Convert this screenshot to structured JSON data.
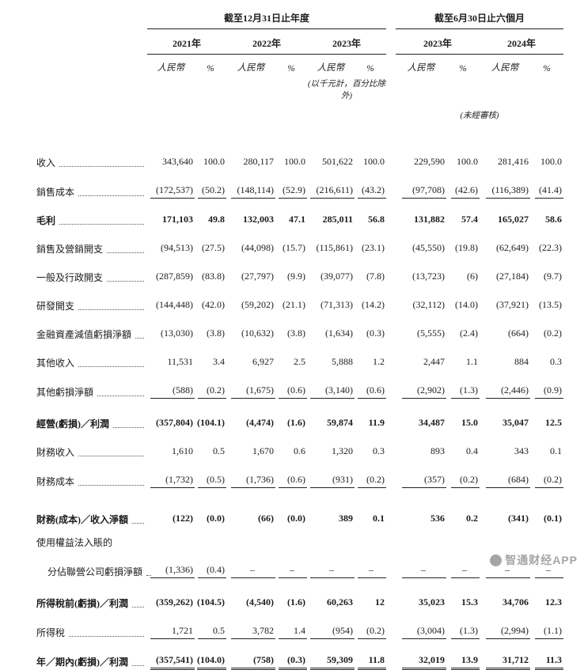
{
  "table": {
    "group1": "截至12月31日止年度",
    "group2": "截至6月30日止六個月",
    "years": [
      "2021年",
      "2022年",
      "2023年",
      "2023年",
      "2024年"
    ],
    "currency_label": "人民幣",
    "percent_label": "%",
    "note_units": "(以千元計，百分比除外)",
    "note_unaudited": "(未經審核)",
    "rows": [
      {
        "label": "收入",
        "values": [
          "343,640",
          "100.0",
          "280,117",
          "100.0",
          "501,622",
          "100.0",
          "229,590",
          "100.0",
          "281,416",
          "100.0"
        ]
      },
      {
        "label": "銷售成本",
        "underline": "single",
        "values": [
          "(172,537)",
          "(50.2)",
          "(148,114)",
          "(52.9)",
          "(216,611)",
          "(43.2)",
          "(97,708)",
          "(42.6)",
          "(116,389)",
          "(41.4)"
        ]
      },
      {
        "label": "毛利",
        "bold": true,
        "values": [
          "171,103",
          "49.8",
          "132,003",
          "47.1",
          "285,011",
          "56.8",
          "131,882",
          "57.4",
          "165,027",
          "58.6"
        ]
      },
      {
        "label": "銷售及營銷開支",
        "values": [
          "(94,513)",
          "(27.5)",
          "(44,098)",
          "(15.7)",
          "(115,861)",
          "(23.1)",
          "(45,550)",
          "(19.8)",
          "(62,649)",
          "(22.3)"
        ]
      },
      {
        "label": "一般及行政開支",
        "values": [
          "(287,859)",
          "(83.8)",
          "(27,797)",
          "(9.9)",
          "(39,077)",
          "(7.8)",
          "(13,723)",
          "(6)",
          "(27,184)",
          "(9.7)"
        ]
      },
      {
        "label": "研發開支",
        "values": [
          "(144,448)",
          "(42.0)",
          "(59,202)",
          "(21.1)",
          "(71,313)",
          "(14.2)",
          "(32,112)",
          "(14.0)",
          "(37,921)",
          "(13.5)"
        ]
      },
      {
        "label": "金融資產減值虧損淨額",
        "values": [
          "(13,030)",
          "(3.8)",
          "(10,632)",
          "(3.8)",
          "(1,634)",
          "(0.3)",
          "(5,555)",
          "(2.4)",
          "(664)",
          "(0.2)"
        ]
      },
      {
        "label": "其他收入",
        "values": [
          "11,531",
          "3.4",
          "6,927",
          "2.5",
          "5,888",
          "1.2",
          "2,447",
          "1.1",
          "884",
          "0.3"
        ]
      },
      {
        "label": "其他虧損淨額",
        "underline": "single",
        "values": [
          "(588)",
          "(0.2)",
          "(1,675)",
          "(0.6)",
          "(3,140)",
          "(0.6)",
          "(2,902)",
          "(1.3)",
          "(2,446)",
          "(0.9)"
        ]
      },
      {
        "label": "經營(虧損)／利潤",
        "bold": true,
        "gap": "gap",
        "values": [
          "(357,804)",
          "(104.1)",
          "(4,474)",
          "(1.6)",
          "59,874",
          "11.9",
          "34,487",
          "15.0",
          "35,047",
          "12.5"
        ]
      },
      {
        "label": "財務收入",
        "values": [
          "1,610",
          "0.5",
          "1,670",
          "0.6",
          "1,320",
          "0.3",
          "893",
          "0.4",
          "343",
          "0.1"
        ]
      },
      {
        "label": "財務成本",
        "underline": "single",
        "values": [
          "(1,732)",
          "(0.5)",
          "(1,736)",
          "(0.6)",
          "(931)",
          "(0.2)",
          "(357)",
          "(0.2)",
          "(684)",
          "(0.2)"
        ]
      },
      {
        "label": "財務(成本)／收入淨額",
        "bold": true,
        "gap": "gap-lg",
        "values": [
          "(122)",
          "(0.0)",
          "(66)",
          "(0.0)",
          "389",
          "0.1",
          "536",
          "0.2",
          "(341)",
          "(0.1)"
        ]
      },
      {
        "label": "使用權益法入賬的",
        "dots": false,
        "gap": "tight",
        "values": null
      },
      {
        "label": "分佔聯營公司虧損淨額",
        "indent": true,
        "underline": "single",
        "values": [
          "(1,336)",
          "(0.4)",
          "–",
          "–",
          "–",
          "–",
          "–",
          "–",
          "–",
          "–"
        ]
      },
      {
        "label": "所得稅前(虧損)／利潤",
        "bold": true,
        "gap": "gap",
        "values": [
          "(359,262)",
          "(104.5)",
          "(4,540)",
          "(1.6)",
          "60,263",
          "12",
          "35,023",
          "15.3",
          "34,706",
          "12.3"
        ]
      },
      {
        "label": "所得稅",
        "underline": "single",
        "values": [
          "1,721",
          "0.5",
          "3,782",
          "1.4",
          "(954)",
          "(0.2)",
          "(3,004)",
          "(1.3)",
          "(2,994)",
          "(1.1)"
        ]
      },
      {
        "label": "年／期內(虧損)／利潤",
        "bold": true,
        "underline": "double",
        "values": [
          "(357,541)",
          "(104.0)",
          "(758)",
          "(0.3)",
          "59,309",
          "11.8",
          "32,019",
          "13.9",
          "31,712",
          "11.3"
        ]
      }
    ]
  },
  "watermark": {
    "text": "智通财经APP"
  }
}
